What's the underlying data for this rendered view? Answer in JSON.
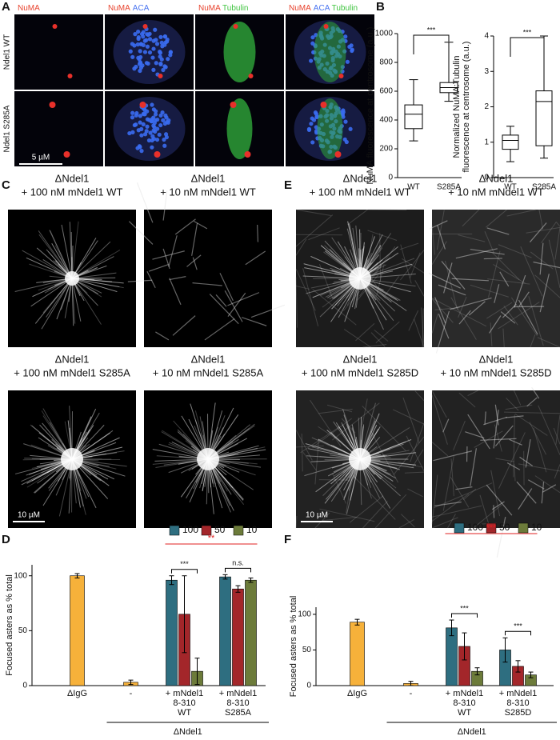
{
  "panel_labels": {
    "a": "A",
    "b": "B",
    "c": "C",
    "d": "D",
    "e": "E",
    "f": "F"
  },
  "panel_a": {
    "columns": [
      [
        {
          "text": "NuMA",
          "color": "#e8432e"
        }
      ],
      [
        {
          "text": "NuMA",
          "color": "#e8432e"
        },
        {
          "text": "ACA",
          "color": "#4a74f0"
        }
      ],
      [
        {
          "text": "NuMA",
          "color": "#e8432e"
        },
        {
          "text": "Tubulin",
          "color": "#3fc43f"
        }
      ],
      [
        {
          "text": "NuMA",
          "color": "#e8432e"
        },
        {
          "text": "ACA",
          "color": "#4a74f0"
        },
        {
          "text": "Tubulin",
          "color": "#3fc43f"
        }
      ]
    ],
    "rows": [
      "Ndel1 WT",
      "Ndel1 S285A"
    ],
    "scale_bar": "5 µM"
  },
  "panel_c": {
    "images": [
      [
        "ΔNdel1",
        "+ 100 nM mNdel1 WT"
      ],
      [
        "ΔNdel1",
        "+ 10 nM mNdel1 WT"
      ],
      [
        "ΔNdel1",
        "+ 100 nM mNdel1 S285A"
      ],
      [
        "ΔNdel1",
        "+ 10 nM mNdel1 S285A"
      ]
    ],
    "scale_bar": "10 µM"
  },
  "panel_e": {
    "images": [
      [
        "ΔNdel1",
        "+ 100 nM mNdel1 WT"
      ],
      [
        "ΔNdel1",
        "+ 10 nM mNdel1 WT"
      ],
      [
        "ΔNdel1",
        "+ 100 nM mNdel1 S285D"
      ],
      [
        "ΔNdel1",
        "+ 10 nM mNdel1 S285D"
      ]
    ],
    "scale_bar": "10 µM"
  },
  "chart_data": [
    {
      "type": "box",
      "ylabel": [
        "NuMA fluorescence at centrosome (a.u.)"
      ],
      "categories": [
        "WT",
        "S285A"
      ],
      "boxes": [
        {
          "min": 255,
          "q1": 340,
          "median": 440,
          "q3": 505,
          "max": 680
        },
        {
          "min": 530,
          "q1": 590,
          "median": 625,
          "q3": 660,
          "max": 940
        }
      ],
      "ylim": [
        0,
        1000
      ],
      "yticks": [
        0,
        200,
        400,
        600,
        800,
        1000
      ],
      "significance": "***"
    },
    {
      "type": "box",
      "ylabel": [
        "Normalized NuMA:Tubulin",
        "fluorescence at centrosome (a.u.)"
      ],
      "categories": [
        "WT",
        "S285A"
      ],
      "boxes": [
        {
          "min": 0.45,
          "q1": 0.8,
          "median": 1.05,
          "q3": 1.2,
          "max": 1.45
        },
        {
          "min": 0.55,
          "q1": 0.9,
          "median": 2.15,
          "q3": 2.45,
          "max": 4.0
        }
      ],
      "ylim": [
        0,
        4
      ],
      "yticks": [
        0,
        1,
        2,
        3,
        4
      ],
      "significance": "***"
    },
    {
      "type": "grouped_bar",
      "ylabel": [
        "Focused asters as % total"
      ],
      "categories": [
        [
          "ΔIgG"
        ],
        [
          "-"
        ],
        [
          "+ mNdel1",
          "8-310",
          "WT"
        ],
        [
          "+ mNdel1",
          "8-310",
          "S285A"
        ]
      ],
      "group_label": "ΔNdel1",
      "control": {
        "color": "#f6b13a",
        "values": [
          100,
          3,
          null,
          null
        ],
        "errors": [
          2,
          2,
          null,
          null
        ]
      },
      "series": [
        {
          "name": "100",
          "color": "#2e6e80",
          "values": [
            null,
            null,
            96,
            99
          ],
          "errors": [
            null,
            null,
            4,
            2
          ]
        },
        {
          "name": "50",
          "color": "#a3262a",
          "values": [
            null,
            null,
            65,
            88
          ],
          "errors": [
            null,
            null,
            35,
            3
          ]
        },
        {
          "name": "10",
          "color": "#6c7b3a",
          "values": [
            null,
            null,
            13,
            96
          ],
          "errors": [
            null,
            null,
            12,
            2
          ]
        }
      ],
      "ylim": [
        0,
        110
      ],
      "yticks": [
        0,
        50,
        100
      ],
      "significance": {
        "wt": "***",
        "mutant": "n.s.",
        "overall": "**"
      }
    },
    {
      "type": "grouped_bar",
      "ylabel": [
        "Focused asters as % total"
      ],
      "categories": [
        [
          "ΔIgG"
        ],
        [
          "-"
        ],
        [
          "+ mNdel1",
          "8-310",
          "WT"
        ],
        [
          "+ mNdel1",
          "8-310",
          "S285D"
        ]
      ],
      "group_label": "ΔNdel1",
      "control": {
        "color": "#f6b13a",
        "values": [
          89,
          3,
          null,
          null
        ],
        "errors": [
          4,
          3,
          null,
          null
        ]
      },
      "series": [
        {
          "name": "100",
          "color": "#2e6e80",
          "values": [
            null,
            null,
            81,
            50
          ],
          "errors": [
            null,
            null,
            11,
            17
          ]
        },
        {
          "name": "50",
          "color": "#a3262a",
          "values": [
            null,
            null,
            55,
            27
          ],
          "errors": [
            null,
            null,
            19,
            8
          ]
        },
        {
          "name": "10",
          "color": "#6c7b3a",
          "values": [
            null,
            null,
            20,
            15
          ],
          "errors": [
            null,
            null,
            5,
            4
          ]
        }
      ],
      "ylim": [
        0,
        110
      ],
      "yticks": [
        0,
        50,
        100
      ],
      "significance": {
        "wt": "***",
        "mutant": "***",
        "overall": "***"
      }
    }
  ]
}
